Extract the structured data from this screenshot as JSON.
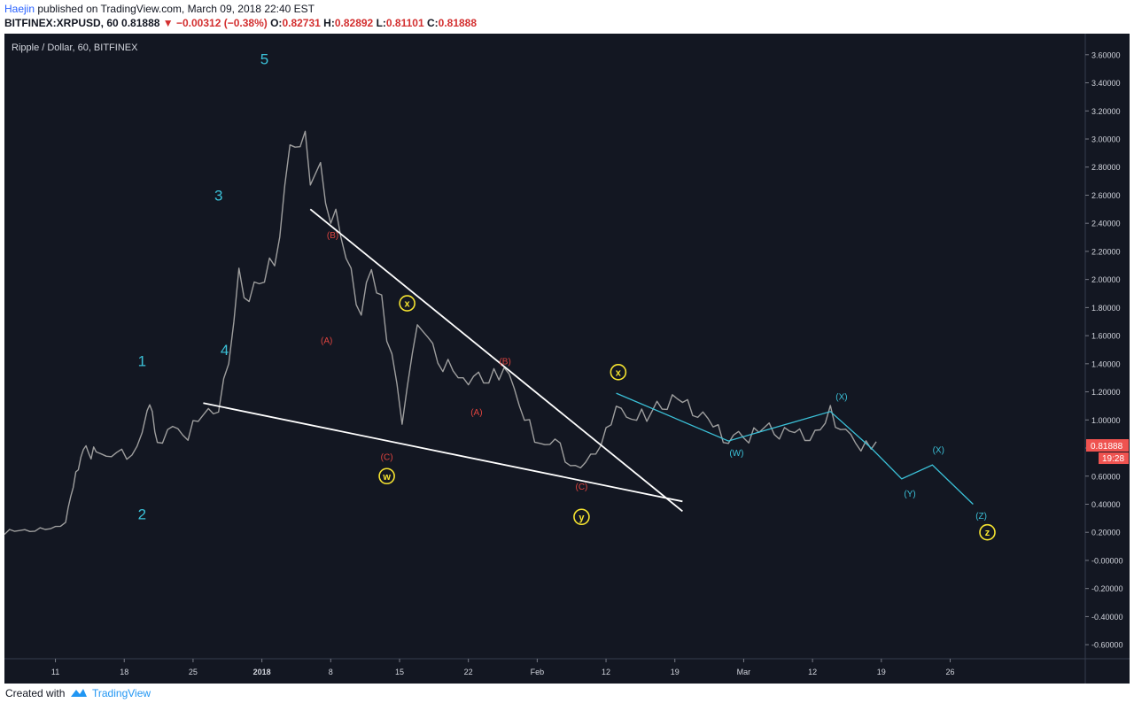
{
  "header": {
    "author": "Haejin",
    "published": "published on TradingView.com, March 09, 2018 22:40 EST",
    "symbol": "BITFINEX:XRPUSD, 60",
    "last": "0.81888",
    "change": "▼ −0.00312 (−0.38%)",
    "open_label": "O:",
    "open": "0.82731",
    "high_label": "H:",
    "high": "0.82892",
    "low_label": "L:",
    "low": "0.81101",
    "close_label": "C:",
    "close": "0.81888"
  },
  "footer": {
    "created_with": "Created with",
    "brand": "TradingView"
  },
  "colors": {
    "background": "#131722",
    "candles": "#9e9e9e",
    "wave_cyan": "#3bc1d8",
    "wave_red": "#e0443f",
    "wave_yellow": "#f5e330",
    "trendline": "#ffffff",
    "price_badge": "#ef5350"
  },
  "chart_data": {
    "type": "line",
    "title": "Ripple / Dollar, 60, BITFINEX",
    "x_ticks": [
      "11",
      "18",
      "25",
      "2018",
      "8",
      "15",
      "22",
      "Feb",
      "12",
      "19",
      "Mar",
      "12",
      "19",
      "26"
    ],
    "y_ticks": [
      "3.60000",
      "3.40000",
      "3.20000",
      "3.00000",
      "2.80000",
      "2.60000",
      "2.40000",
      "2.20000",
      "2.00000",
      "1.80000",
      "1.60000",
      "1.40000",
      "1.20000",
      "1.00000",
      "0.80000",
      "0.60000",
      "0.40000",
      "0.20000",
      "-0.00000",
      "-0.20000",
      "-0.40000",
      "-0.60000"
    ],
    "ylim": [
      -0.7,
      3.75
    ],
    "xlim": [
      0,
      106
    ],
    "last_price_label": "0.81888",
    "countdown_label": "19:28",
    "series": [
      {
        "values": [
          [
            0,
            0.2
          ],
          [
            1,
            0.21
          ],
          [
            2,
            0.21
          ],
          [
            3,
            0.22
          ],
          [
            4,
            0.22
          ],
          [
            5,
            0.23
          ],
          [
            6,
            0.28
          ],
          [
            6.5,
            0.45
          ],
          [
            7,
            0.6
          ],
          [
            7.5,
            0.75
          ],
          [
            8,
            0.8
          ],
          [
            8.5,
            0.76
          ],
          [
            9,
            0.78
          ],
          [
            10,
            0.72
          ],
          [
            11,
            0.8
          ],
          [
            12,
            0.72
          ],
          [
            13,
            0.78
          ],
          [
            14,
            1.1
          ],
          [
            14.5,
            1.05
          ],
          [
            15,
            0.8
          ],
          [
            16,
            0.95
          ],
          [
            17,
            0.92
          ],
          [
            18,
            0.9
          ],
          [
            19,
            1.0
          ],
          [
            20,
            1.05
          ],
          [
            21,
            1.1
          ],
          [
            22,
            1.4
          ],
          [
            23,
            2.0
          ],
          [
            24,
            1.9
          ],
          [
            25,
            1.95
          ],
          [
            26,
            2.05
          ],
          [
            27,
            2.35
          ],
          [
            28,
            2.9
          ],
          [
            29,
            3.1
          ],
          [
            30,
            2.7
          ],
          [
            31,
            2.75
          ],
          [
            32,
            2.5
          ],
          [
            33,
            2.3
          ],
          [
            34,
            2.0
          ],
          [
            35,
            1.8
          ],
          [
            36,
            2.05
          ],
          [
            37,
            1.8
          ],
          [
            38,
            1.5
          ],
          [
            39,
            0.95
          ],
          [
            40,
            1.55
          ],
          [
            41,
            1.65
          ],
          [
            42,
            1.5
          ],
          [
            43,
            1.4
          ],
          [
            44,
            1.35
          ],
          [
            45,
            1.25
          ],
          [
            46,
            1.35
          ],
          [
            47,
            1.25
          ],
          [
            48,
            1.3
          ],
          [
            49,
            1.4
          ],
          [
            50,
            1.2
          ],
          [
            51,
            1.05
          ],
          [
            52,
            0.85
          ],
          [
            53,
            0.8
          ],
          [
            54,
            0.9
          ],
          [
            55,
            0.7
          ],
          [
            56,
            0.65
          ],
          [
            57,
            0.72
          ],
          [
            58,
            0.75
          ],
          [
            59,
            0.9
          ],
          [
            60,
            1.12
          ],
          [
            61,
            1.0
          ],
          [
            62,
            1.05
          ],
          [
            63,
            1.0
          ],
          [
            64,
            1.1
          ],
          [
            65,
            1.12
          ],
          [
            66,
            1.15
          ],
          [
            67,
            1.1
          ],
          [
            68,
            1.05
          ],
          [
            69,
            1.0
          ],
          [
            70,
            0.92
          ],
          [
            71,
            0.85
          ],
          [
            72,
            0.9
          ],
          [
            73,
            0.88
          ],
          [
            74,
            0.92
          ],
          [
            75,
            0.95
          ],
          [
            76,
            0.9
          ],
          [
            77,
            0.92
          ],
          [
            78,
            0.9
          ],
          [
            79,
            0.88
          ],
          [
            80,
            0.92
          ],
          [
            81,
            1.05
          ],
          [
            82,
            0.95
          ],
          [
            83,
            0.88
          ],
          [
            84,
            0.82
          ],
          [
            85,
            0.8
          ],
          [
            85.5,
            0.82
          ]
        ]
      },
      {
        "values": [
          [
            60,
            1.19
          ],
          [
            71,
            0.85
          ],
          [
            81,
            1.06
          ],
          [
            85,
            0.8
          ],
          [
            88,
            0.58
          ],
          [
            91,
            0.68
          ],
          [
            95,
            0.4
          ]
        ]
      }
    ],
    "trendlines": [
      {
        "from": [
          19.5,
          1.12
        ],
        "to": [
          66.5,
          0.42
        ]
      },
      {
        "from": [
          30,
          2.5
        ],
        "to": [
          66.5,
          0.35
        ]
      }
    ],
    "annotations": [
      {
        "text": "1",
        "x": 13.5,
        "y": 1.42,
        "style": "cyan-big"
      },
      {
        "text": "2",
        "x": 13.5,
        "y": 0.33,
        "style": "cyan-big"
      },
      {
        "text": "3",
        "x": 21,
        "y": 2.6,
        "style": "cyan-big"
      },
      {
        "text": "4",
        "x": 21.6,
        "y": 1.5,
        "style": "cyan-big"
      },
      {
        "text": "5",
        "x": 25.5,
        "y": 3.57,
        "style": "cyan-big"
      },
      {
        "text": "(B)",
        "x": 32.2,
        "y": 2.32,
        "style": "red"
      },
      {
        "text": "(A)",
        "x": 31.6,
        "y": 1.57,
        "style": "red"
      },
      {
        "text": "(C)",
        "x": 37.5,
        "y": 0.74,
        "style": "red"
      },
      {
        "text": "(B)",
        "x": 49.1,
        "y": 1.42,
        "style": "red"
      },
      {
        "text": "(A)",
        "x": 46.3,
        "y": 1.06,
        "style": "red"
      },
      {
        "text": "(C)",
        "x": 56.6,
        "y": 0.53,
        "style": "red"
      },
      {
        "text": "x",
        "x": 39.5,
        "y": 1.83,
        "style": "yellow-circle"
      },
      {
        "text": "w",
        "x": 37.5,
        "y": 0.6,
        "style": "yellow-circle"
      },
      {
        "text": "x",
        "x": 60.2,
        "y": 1.34,
        "style": "yellow-circle"
      },
      {
        "text": "y",
        "x": 56.6,
        "y": 0.31,
        "style": "yellow-circle"
      },
      {
        "text": "z",
        "x": 96.4,
        "y": 0.2,
        "style": "yellow-circle"
      },
      {
        "text": "(W)",
        "x": 71.8,
        "y": 0.77,
        "style": "cyan"
      },
      {
        "text": "(X)",
        "x": 82.1,
        "y": 1.17,
        "style": "cyan"
      },
      {
        "text": "(Y)",
        "x": 88.8,
        "y": 0.48,
        "style": "cyan"
      },
      {
        "text": "(X)",
        "x": 91.6,
        "y": 0.79,
        "style": "cyan"
      },
      {
        "text": "(Z)",
        "x": 95.8,
        "y": 0.32,
        "style": "cyan"
      }
    ]
  }
}
